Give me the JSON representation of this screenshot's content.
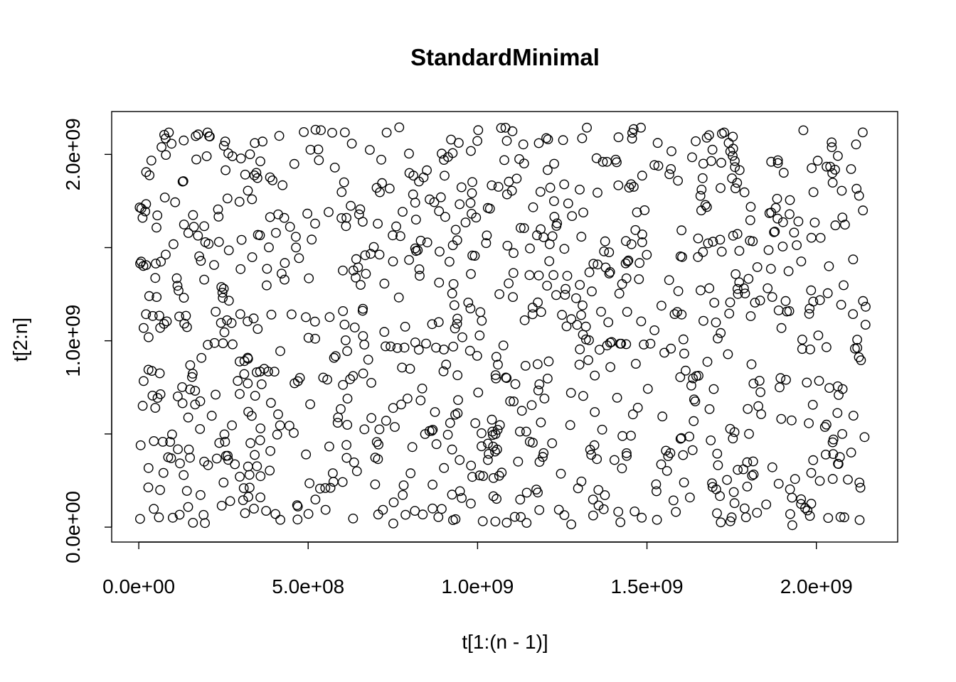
{
  "chart_data": {
    "type": "scatter",
    "title": "StandardMinimal",
    "xlabel": "t[1:(n - 1)]",
    "ylabel": "t[2:n]",
    "xlim": [
      -80000000,
      2240000000
    ],
    "ylim": [
      -80000000,
      2230000000
    ],
    "x_ticks": [
      0,
      500000000,
      1000000000,
      1500000000,
      2000000000
    ],
    "x_tick_labels": [
      "0.0e+00",
      "5.0e+08",
      "1.0e+09",
      "1.5e+09",
      "2.0e+09"
    ],
    "y_ticks": [
      0,
      500000000,
      1000000000,
      1500000000,
      2000000000
    ],
    "y_tick_labels": [
      "0.0e+00",
      "",
      "1.0e+09",
      "",
      "2.0e+09"
    ],
    "marker": "open-circle",
    "grid": false,
    "legend": "none",
    "n_points": 1000,
    "point_distribution": "uniform",
    "point_range": [
      0,
      2147483647
    ],
    "colors": {
      "points": "#000000",
      "axes": "#000000",
      "background": "#ffffff"
    }
  }
}
